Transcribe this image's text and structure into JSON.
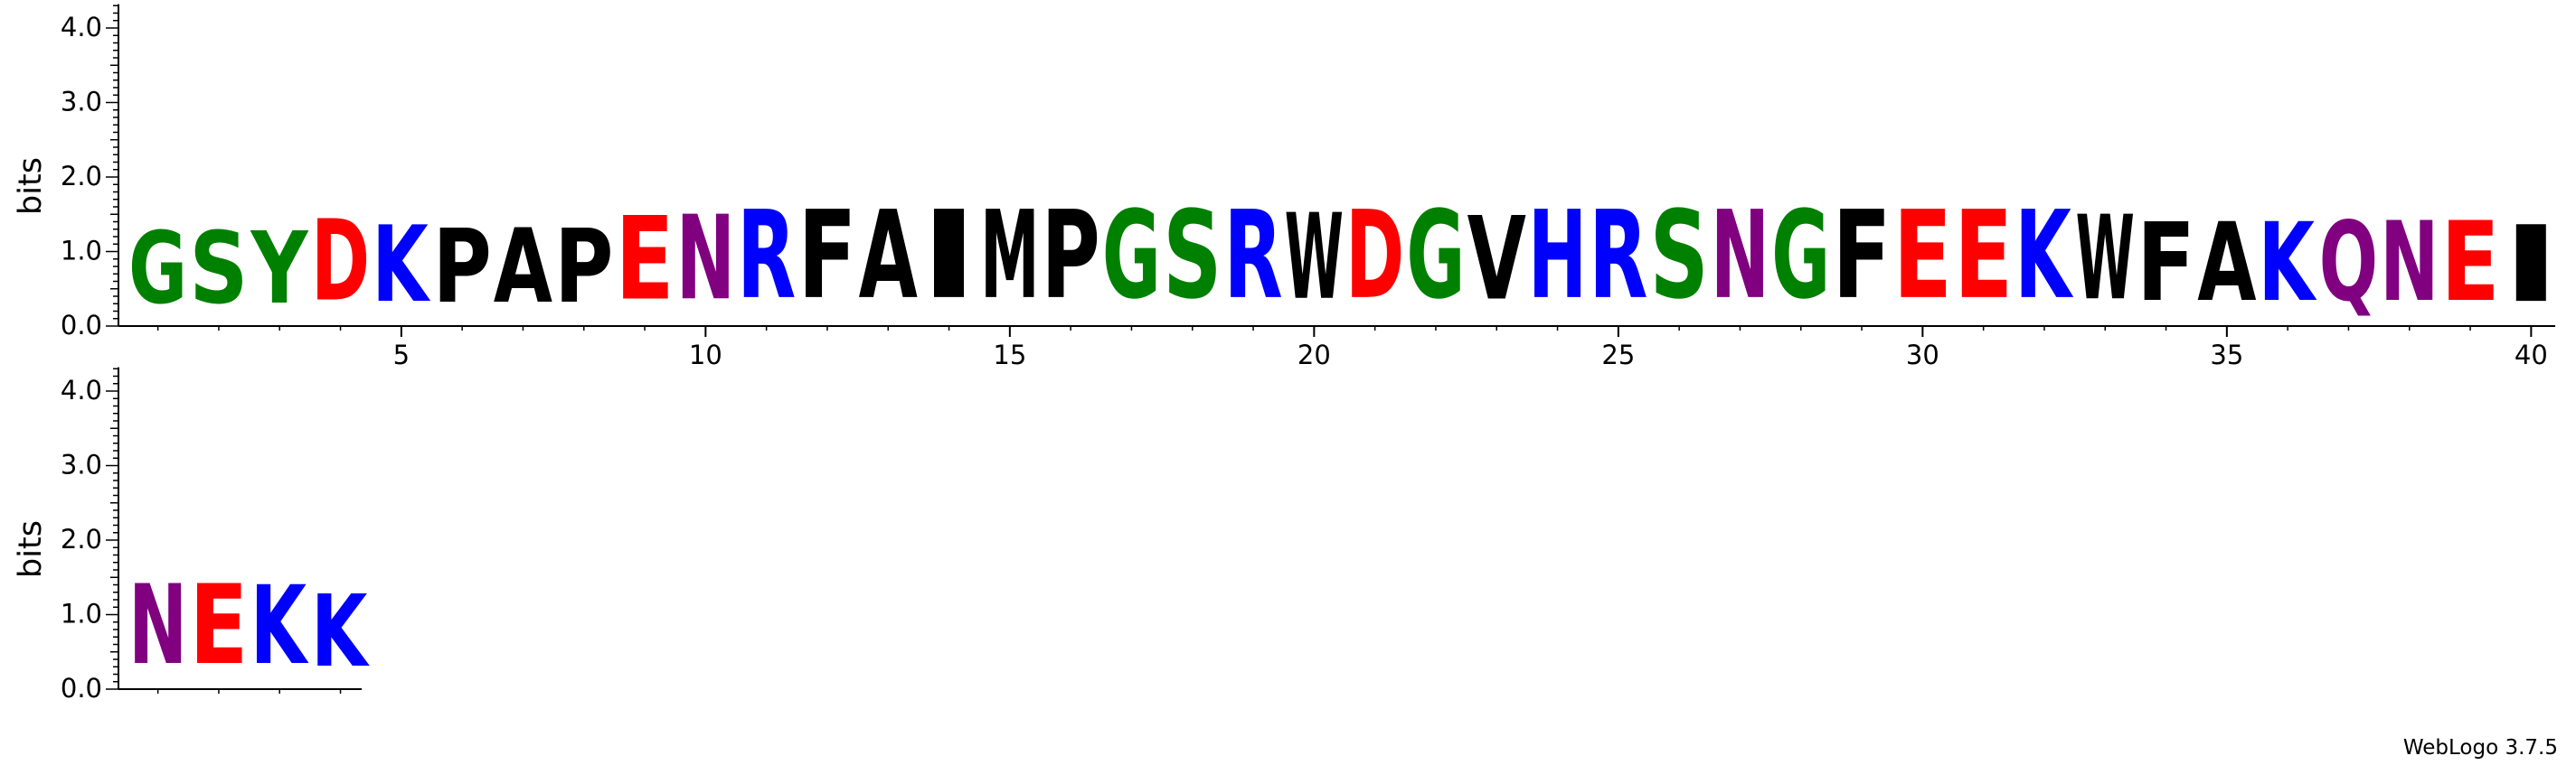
{
  "chart_data": {
    "type": "sequence-logo",
    "ylabel": "bits",
    "yticks": [
      "0.0",
      "1.0",
      "2.0",
      "3.0",
      "4.0"
    ],
    "ylim": [
      0,
      4.32
    ],
    "rows": [
      {
        "xticks": [
          5,
          10,
          15,
          20,
          25,
          30,
          35,
          40
        ],
        "positions": [
          {
            "pos": 1,
            "letter": "G",
            "bits": 1.55
          },
          {
            "pos": 2,
            "letter": "S",
            "bits": 1.55
          },
          {
            "pos": 3,
            "letter": "Y",
            "bits": 1.55
          },
          {
            "pos": 4,
            "letter": "D",
            "bits": 1.75
          },
          {
            "pos": 5,
            "letter": "K",
            "bits": 1.65
          },
          {
            "pos": 6,
            "letter": "P",
            "bits": 1.6
          },
          {
            "pos": 7,
            "letter": "A",
            "bits": 1.6
          },
          {
            "pos": 8,
            "letter": "P",
            "bits": 1.6
          },
          {
            "pos": 9,
            "letter": "E",
            "bits": 1.8
          },
          {
            "pos": 10,
            "letter": "N",
            "bits": 1.82
          },
          {
            "pos": 11,
            "letter": "R",
            "bits": 1.9
          },
          {
            "pos": 12,
            "letter": "F",
            "bits": 1.9
          },
          {
            "pos": 13,
            "letter": "A",
            "bits": 1.9
          },
          {
            "pos": 14,
            "letter": "I",
            "bits": 1.9
          },
          {
            "pos": 15,
            "letter": "M",
            "bits": 1.9
          },
          {
            "pos": 16,
            "letter": "P",
            "bits": 1.9
          },
          {
            "pos": 17,
            "letter": "G",
            "bits": 1.9
          },
          {
            "pos": 18,
            "letter": "S",
            "bits": 1.9
          },
          {
            "pos": 19,
            "letter": "R",
            "bits": 1.9
          },
          {
            "pos": 20,
            "letter": "W",
            "bits": 1.85
          },
          {
            "pos": 21,
            "letter": "D",
            "bits": 1.9
          },
          {
            "pos": 22,
            "letter": "G",
            "bits": 1.9
          },
          {
            "pos": 23,
            "letter": "V",
            "bits": 1.8
          },
          {
            "pos": 24,
            "letter": "H",
            "bits": 1.9
          },
          {
            "pos": 25,
            "letter": "R",
            "bits": 1.9
          },
          {
            "pos": 26,
            "letter": "S",
            "bits": 1.9
          },
          {
            "pos": 27,
            "letter": "N",
            "bits": 1.9
          },
          {
            "pos": 28,
            "letter": "G",
            "bits": 1.9
          },
          {
            "pos": 29,
            "letter": "F",
            "bits": 1.9
          },
          {
            "pos": 30,
            "letter": "E",
            "bits": 1.9
          },
          {
            "pos": 31,
            "letter": "E",
            "bits": 1.9
          },
          {
            "pos": 32,
            "letter": "K",
            "bits": 1.9
          },
          {
            "pos": 33,
            "letter": "W",
            "bits": 1.82
          },
          {
            "pos": 34,
            "letter": "F",
            "bits": 1.7
          },
          {
            "pos": 35,
            "letter": "A",
            "bits": 1.7
          },
          {
            "pos": 36,
            "letter": "K",
            "bits": 1.7
          },
          {
            "pos": 37,
            "letter": "Q",
            "bits": 1.72
          },
          {
            "pos": 38,
            "letter": "N",
            "bits": 1.72
          },
          {
            "pos": 39,
            "letter": "E",
            "bits": 1.72
          },
          {
            "pos": 40,
            "letter": "I",
            "bits": 1.65
          }
        ]
      },
      {
        "xticks": [],
        "positions": [
          {
            "pos": 41,
            "letter": "N",
            "bits": 1.72
          },
          {
            "pos": 42,
            "letter": "E",
            "bits": 1.72
          },
          {
            "pos": 43,
            "letter": "K",
            "bits": 1.7
          },
          {
            "pos": 44,
            "letter": "K",
            "bits": 1.55
          }
        ]
      }
    ],
    "colors": {
      "G": "#008000",
      "S": "#008000",
      "Y": "#008000",
      "T": "#008000",
      "C": "#008000",
      "D": "#ff0000",
      "E": "#ff0000",
      "K": "#0000ff",
      "R": "#0000ff",
      "H": "#0000ff",
      "N": "#800080",
      "Q": "#800080",
      "P": "#000000",
      "A": "#000000",
      "F": "#000000",
      "I": "#000000",
      "M": "#000000",
      "W": "#000000",
      "V": "#000000",
      "L": "#000000"
    }
  },
  "credit": "WebLogo 3.7.5"
}
